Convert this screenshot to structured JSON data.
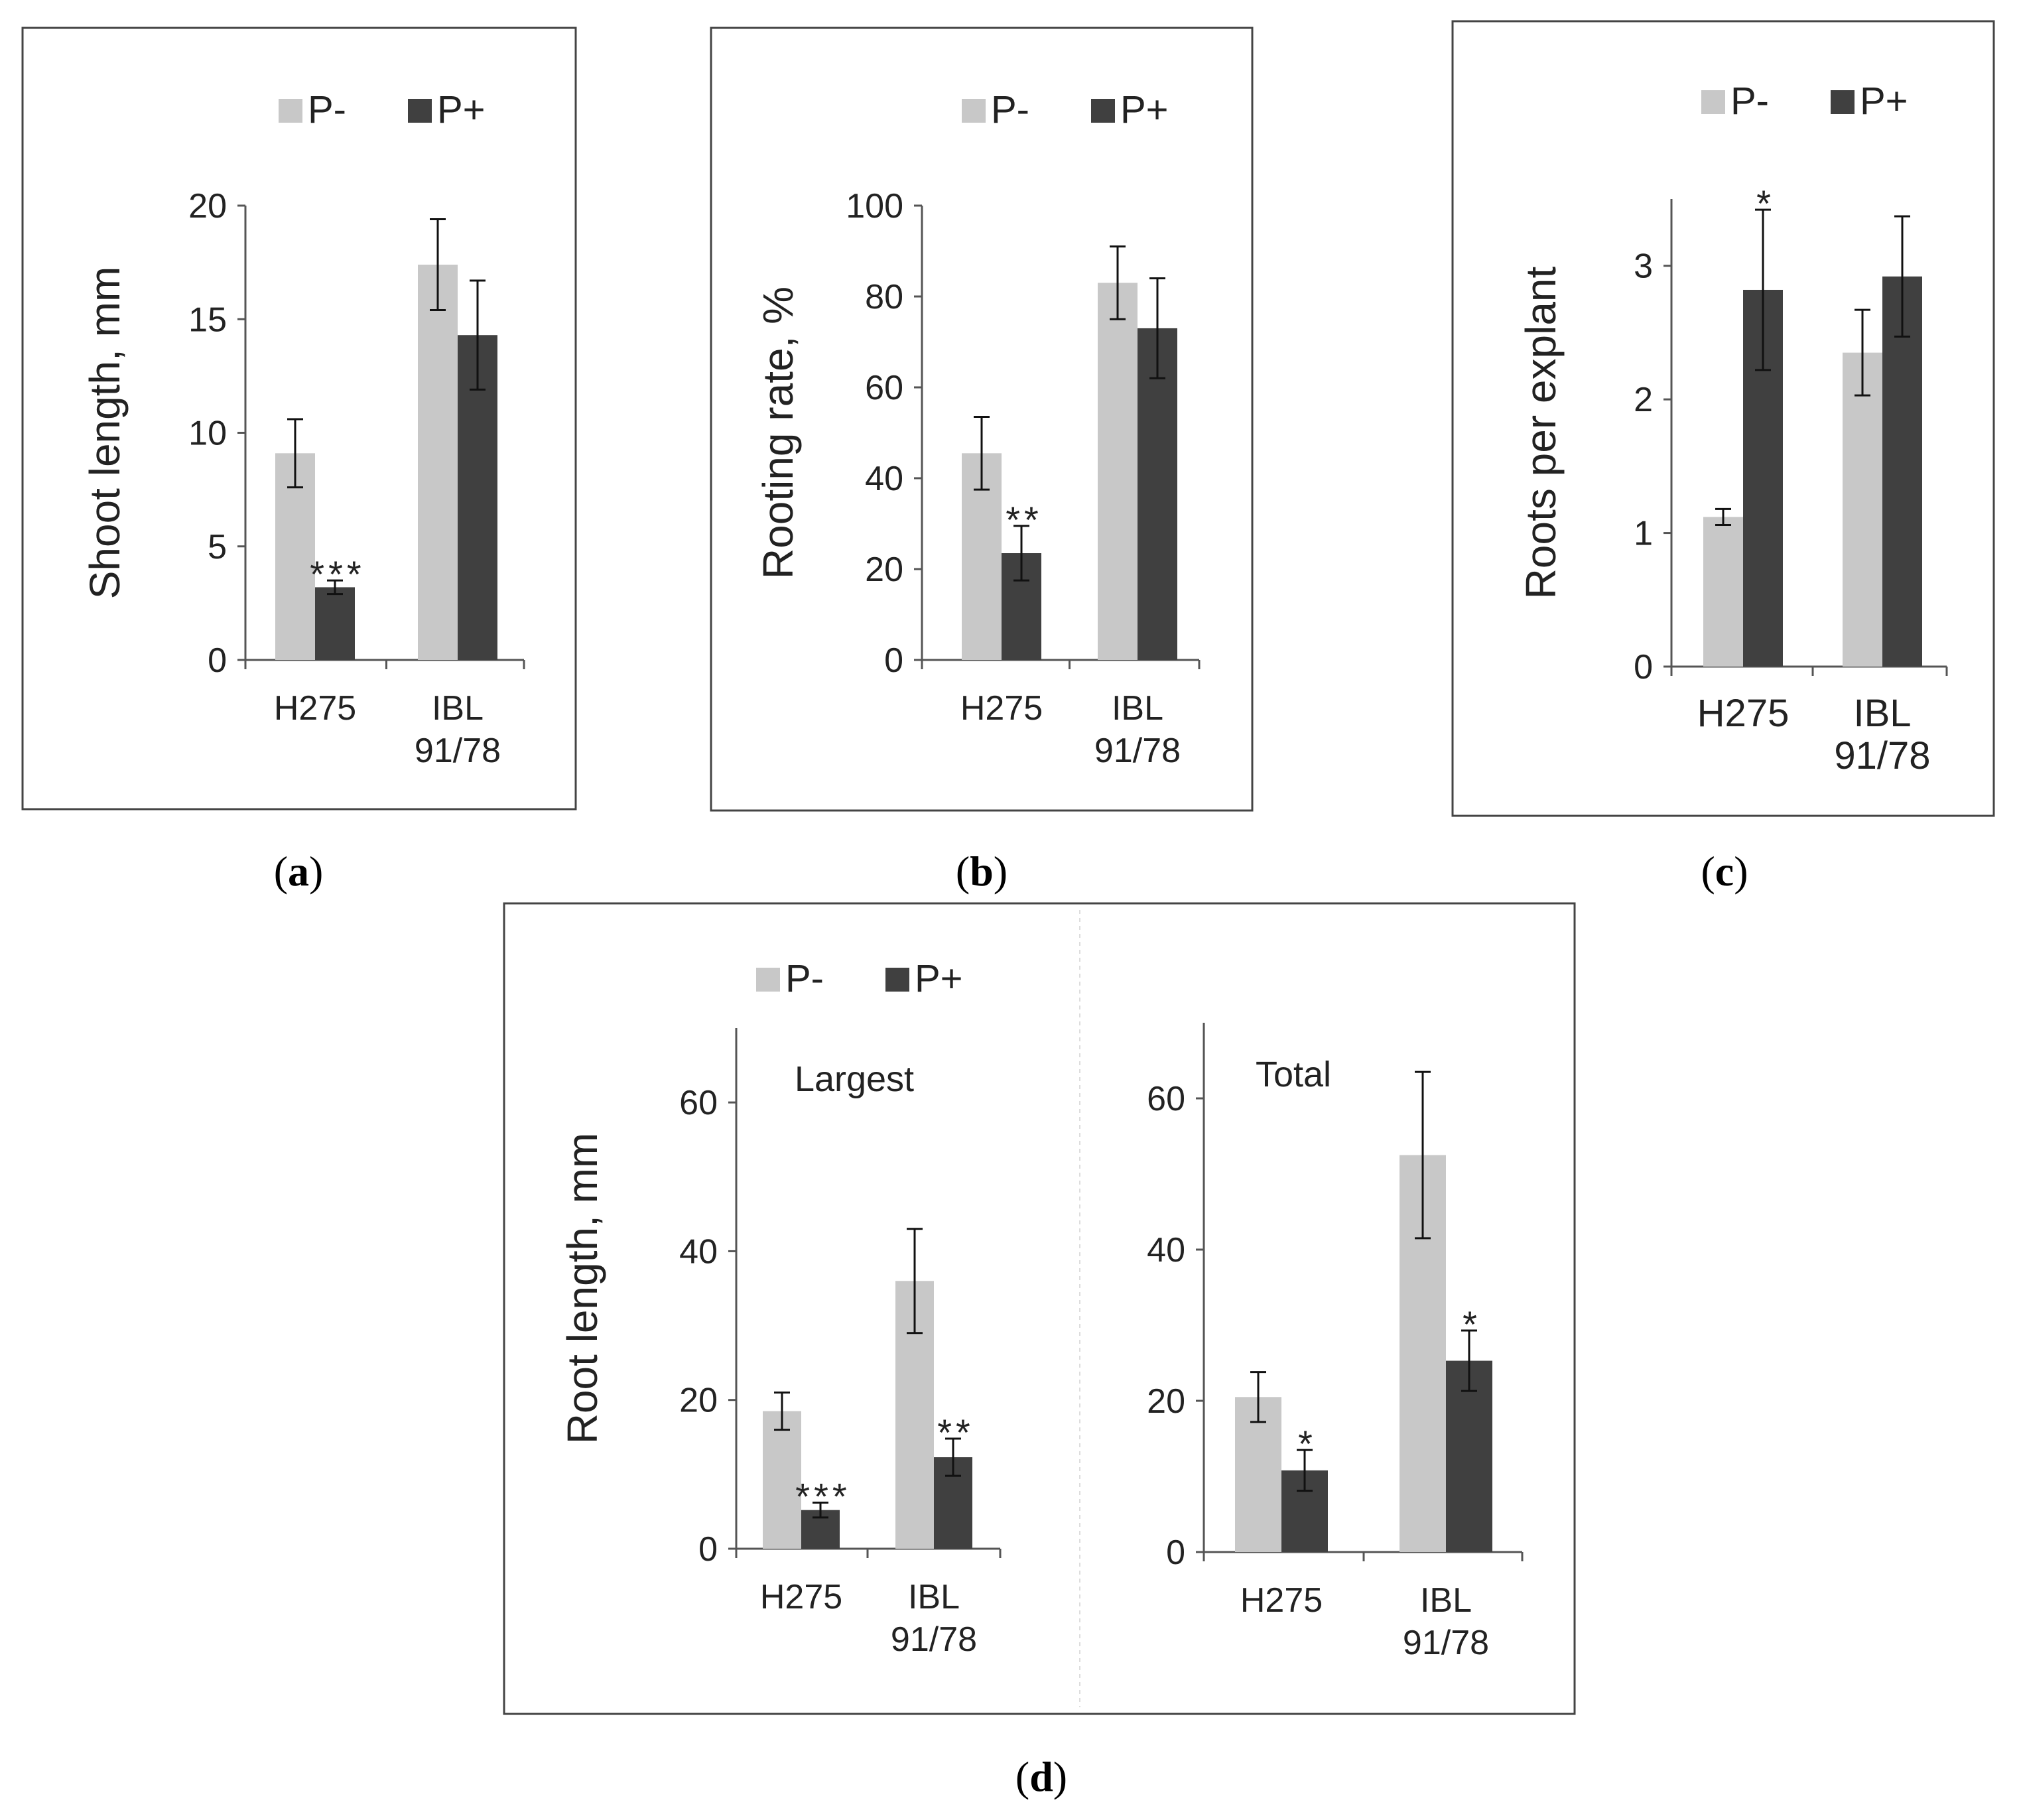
{
  "colors": {
    "p_minus": "#c8c8c8",
    "p_plus": "#404040",
    "axis": "#555555",
    "frame": "#444444"
  },
  "panel_labels": [
    {
      "open": "(",
      "letter": "a",
      "close": ")"
    },
    {
      "open": "(",
      "letter": "b",
      "close": ")"
    },
    {
      "open": "(",
      "letter": "c",
      "close": ")"
    },
    {
      "open": "(",
      "letter": "d",
      "close": ")"
    }
  ],
  "chart_data": [
    {
      "id": "a",
      "type": "bar",
      "categories": [
        [
          "H275"
        ],
        [
          "IBL",
          "91/78"
        ]
      ],
      "legend": [
        "P-",
        "P+"
      ],
      "ylabel": "Shoot length, mm",
      "ylim": [
        0,
        20
      ],
      "yticks": [
        0,
        5,
        10,
        15,
        20
      ],
      "series": [
        {
          "name": "P-",
          "values": [
            9.1,
            17.4
          ],
          "errors": [
            1.5,
            2.0
          ],
          "marks": [
            "",
            ""
          ]
        },
        {
          "name": "P+",
          "values": [
            3.2,
            14.3
          ],
          "errors": [
            0.3,
            2.4
          ],
          "marks": [
            "***",
            ""
          ]
        }
      ]
    },
    {
      "id": "b",
      "type": "bar",
      "categories": [
        [
          "H275"
        ],
        [
          "IBL",
          "91/78"
        ]
      ],
      "legend": [
        "P-",
        "P+"
      ],
      "ylabel": "Rooting rate, %",
      "ylim": [
        0,
        100
      ],
      "yticks": [
        0,
        20,
        40,
        60,
        80,
        100
      ],
      "series": [
        {
          "name": "P-",
          "values": [
            45.5,
            83.0
          ],
          "errors": [
            8.0,
            8.0
          ],
          "marks": [
            "",
            ""
          ]
        },
        {
          "name": "P+",
          "values": [
            23.5,
            73.0
          ],
          "errors": [
            6.0,
            11.0
          ],
          "marks": [
            "**",
            ""
          ]
        }
      ]
    },
    {
      "id": "c",
      "type": "bar",
      "categories": [
        [
          "H275"
        ],
        [
          "IBL",
          "91/78"
        ]
      ],
      "legend": [
        "P-",
        "P+"
      ],
      "ylabel": "Roots per explant",
      "ylim": [
        0,
        3.5
      ],
      "yticks": [
        0,
        1,
        2,
        3
      ],
      "series": [
        {
          "name": "P-",
          "values": [
            1.12,
            2.35
          ],
          "errors": [
            0.06,
            0.32
          ],
          "marks": [
            "",
            ""
          ]
        },
        {
          "name": "P+",
          "values": [
            2.82,
            2.92
          ],
          "errors": [
            0.6,
            0.45
          ],
          "marks": [
            "*",
            ""
          ]
        }
      ]
    },
    {
      "id": "d-largest",
      "type": "bar",
      "subtitle": "Largest",
      "categories": [
        [
          "H275"
        ],
        [
          "IBL",
          "91/78"
        ]
      ],
      "legend": [
        "P-",
        "P+"
      ],
      "ylabel": "Root length, mm",
      "ylim": [
        0,
        70
      ],
      "yticks": [
        0,
        20,
        40,
        60
      ],
      "series": [
        {
          "name": "P-",
          "values": [
            18.5,
            36.0
          ],
          "errors": [
            2.5,
            7.0
          ],
          "marks": [
            "",
            ""
          ]
        },
        {
          "name": "P+",
          "values": [
            5.2,
            12.3
          ],
          "errors": [
            1.0,
            2.5
          ],
          "marks": [
            "***",
            "**"
          ]
        }
      ]
    },
    {
      "id": "d-total",
      "type": "bar",
      "subtitle": "Total",
      "categories": [
        [
          "H275"
        ],
        [
          "IBL",
          "91/78"
        ]
      ],
      "ylim": [
        0,
        70
      ],
      "yticks": [
        0,
        20,
        40,
        60
      ],
      "series": [
        {
          "name": "P-",
          "values": [
            20.5,
            52.5
          ],
          "errors": [
            3.3,
            11.0
          ],
          "marks": [
            "",
            ""
          ]
        },
        {
          "name": "P+",
          "values": [
            10.8,
            25.3
          ],
          "errors": [
            2.7,
            4.0
          ],
          "marks": [
            "*",
            "*"
          ]
        }
      ]
    }
  ]
}
